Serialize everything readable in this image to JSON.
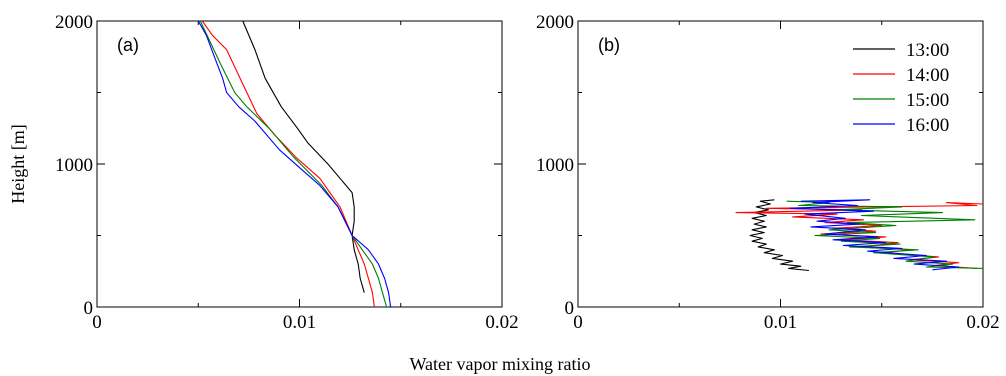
{
  "figure": {
    "ylabel": "Height [m]",
    "xlabel": "Water vapor mixing ratio"
  },
  "colors": {
    "13:00": "#000000",
    "14:00": "#ff0000",
    "15:00": "#008000",
    "16:00": "#0000ff"
  },
  "chart_data": [
    {
      "type": "line",
      "panel_label": "(a)",
      "xlim": [
        0,
        0.02
      ],
      "ylim": [
        0,
        2000
      ],
      "xticks": [
        "0",
        "0.01",
        "0.02"
      ],
      "yticks": [
        "0",
        "1000",
        "2000"
      ],
      "grid": false,
      "series": [
        {
          "color": "#000000",
          "points": [
            [
              0.0072,
              2000
            ],
            [
              0.0078,
              1800
            ],
            [
              0.0083,
              1600
            ],
            [
              0.0091,
              1400
            ],
            [
              0.0099,
              1250
            ],
            [
              0.0104,
              1150
            ],
            [
              0.0114,
              1000
            ],
            [
              0.012,
              900
            ],
            [
              0.0126,
              800
            ],
            [
              0.0127,
              700
            ],
            [
              0.0127,
              600
            ],
            [
              0.0126,
              500
            ],
            [
              0.0127,
              400
            ],
            [
              0.0129,
              300
            ],
            [
              0.013,
              200
            ],
            [
              0.0132,
              100
            ]
          ]
        },
        {
          "color": "#ff0000",
          "points": [
            [
              0.0052,
              2000
            ],
            [
              0.0057,
              1900
            ],
            [
              0.0064,
              1800
            ],
            [
              0.0069,
              1650
            ],
            [
              0.0074,
              1500
            ],
            [
              0.0079,
              1350
            ],
            [
              0.0088,
              1200
            ],
            [
              0.0098,
              1050
            ],
            [
              0.011,
              900
            ],
            [
              0.012,
              700
            ],
            [
              0.0126,
              500
            ],
            [
              0.0129,
              400
            ],
            [
              0.0132,
              300
            ],
            [
              0.0134,
              200
            ],
            [
              0.0136,
              100
            ],
            [
              0.0137,
              0
            ]
          ]
        },
        {
          "color": "#008000",
          "points": [
            [
              0.0051,
              2000
            ],
            [
              0.0056,
              1850
            ],
            [
              0.0061,
              1700
            ],
            [
              0.0068,
              1500
            ],
            [
              0.0074,
              1400
            ],
            [
              0.0085,
              1250
            ],
            [
              0.0097,
              1050
            ],
            [
              0.0111,
              850
            ],
            [
              0.0119,
              700
            ],
            [
              0.0126,
              500
            ],
            [
              0.0131,
              400
            ],
            [
              0.0136,
              300
            ],
            [
              0.0139,
              200
            ],
            [
              0.0141,
              100
            ],
            [
              0.0143,
              0
            ]
          ]
        },
        {
          "color": "#0000ff",
          "points": [
            [
              0.005,
              2000
            ],
            [
              0.0054,
              1900
            ],
            [
              0.0058,
              1750
            ],
            [
              0.0062,
              1600
            ],
            [
              0.0064,
              1500
            ],
            [
              0.007,
              1400
            ],
            [
              0.0078,
              1300
            ],
            [
              0.009,
              1100
            ],
            [
              0.0102,
              950
            ],
            [
              0.011,
              850
            ],
            [
              0.0119,
              700
            ],
            [
              0.0126,
              500
            ],
            [
              0.0134,
              400
            ],
            [
              0.0139,
              300
            ],
            [
              0.0142,
              200
            ],
            [
              0.0144,
              100
            ],
            [
              0.0145,
              0
            ]
          ]
        }
      ]
    },
    {
      "type": "line",
      "panel_label": "(b)",
      "xlim": [
        0,
        0.02
      ],
      "ylim": [
        0,
        2000
      ],
      "xticks": [
        "0",
        "0.01",
        "0.02"
      ],
      "yticks": [
        "0",
        "1000",
        "2000"
      ],
      "grid": false,
      "legend": {
        "position": "top-right"
      },
      "series": [
        {
          "name": "13:00",
          "color": "#000000",
          "points": [
            [
              0.0097,
              750
            ],
            [
              0.009,
              740
            ],
            [
              0.0095,
              720
            ],
            [
              0.0088,
              700
            ],
            [
              0.0094,
              680
            ],
            [
              0.0087,
              660
            ],
            [
              0.0093,
              640
            ],
            [
              0.0086,
              620
            ],
            [
              0.0092,
              600
            ],
            [
              0.0087,
              580
            ],
            [
              0.0093,
              560
            ],
            [
              0.0086,
              540
            ],
            [
              0.0092,
              520
            ],
            [
              0.0085,
              500
            ],
            [
              0.0091,
              480
            ],
            [
              0.0086,
              460
            ],
            [
              0.0093,
              440
            ],
            [
              0.0089,
              420
            ],
            [
              0.0097,
              400
            ],
            [
              0.0092,
              380
            ],
            [
              0.0101,
              360
            ],
            [
              0.0096,
              340
            ],
            [
              0.0106,
              320
            ],
            [
              0.01,
              300
            ],
            [
              0.011,
              285
            ],
            [
              0.0104,
              270
            ],
            [
              0.0114,
              255
            ]
          ]
        },
        {
          "name": "14:00",
          "color": "#ff0000",
          "points": [
            [
              0.02,
              720
            ],
            [
              0.0182,
              730
            ],
            [
              0.0197,
              710
            ],
            [
              0.0093,
              690
            ],
            [
              0.014,
              680
            ],
            [
              0.0078,
              660
            ],
            [
              0.0128,
              650
            ],
            [
              0.0106,
              630
            ],
            [
              0.0141,
              610
            ],
            [
              0.0122,
              590
            ],
            [
              0.015,
              570
            ],
            [
              0.0126,
              550
            ],
            [
              0.0147,
              530
            ],
            [
              0.012,
              510
            ],
            [
              0.0152,
              490
            ],
            [
              0.013,
              470
            ],
            [
              0.0158,
              450
            ],
            [
              0.014,
              420
            ],
            [
              0.0165,
              400
            ],
            [
              0.015,
              380
            ],
            [
              0.0178,
              350
            ],
            [
              0.0164,
              330
            ],
            [
              0.0188,
              310
            ],
            [
              0.0176,
              290
            ],
            [
              0.0197,
              270
            ]
          ]
        },
        {
          "name": "15:00",
          "color": "#008000",
          "points": [
            [
              0.0103,
              740
            ],
            [
              0.0124,
              730
            ],
            [
              0.0109,
              710
            ],
            [
              0.016,
              700
            ],
            [
              0.0128,
              680
            ],
            [
              0.018,
              660
            ],
            [
              0.014,
              640
            ],
            [
              0.0196,
              610
            ],
            [
              0.0133,
              590
            ],
            [
              0.0157,
              570
            ],
            [
              0.0124,
              540
            ],
            [
              0.0147,
              520
            ],
            [
              0.0117,
              500
            ],
            [
              0.0149,
              480
            ],
            [
              0.013,
              460
            ],
            [
              0.0159,
              440
            ],
            [
              0.0134,
              420
            ],
            [
              0.0168,
              400
            ],
            [
              0.0146,
              380
            ],
            [
              0.0176,
              350
            ],
            [
              0.0162,
              320
            ],
            [
              0.0185,
              300
            ],
            [
              0.0172,
              280
            ],
            [
              0.02,
              270
            ]
          ]
        },
        {
          "name": "16:00",
          "color": "#0000ff",
          "points": [
            [
              0.011,
              740
            ],
            [
              0.0144,
              750
            ],
            [
              0.0116,
              730
            ],
            [
              0.0138,
              710
            ],
            [
              0.0105,
              690
            ],
            [
              0.0146,
              670
            ],
            [
              0.0112,
              650
            ],
            [
              0.0132,
              620
            ],
            [
              0.0118,
              600
            ],
            [
              0.0139,
              580
            ],
            [
              0.0115,
              560
            ],
            [
              0.0142,
              540
            ],
            [
              0.0122,
              510
            ],
            [
              0.0148,
              490
            ],
            [
              0.0126,
              470
            ],
            [
              0.0152,
              450
            ],
            [
              0.0131,
              430
            ],
            [
              0.016,
              410
            ],
            [
              0.0143,
              390
            ],
            [
              0.0172,
              360
            ],
            [
              0.0156,
              340
            ],
            [
              0.0182,
              320
            ],
            [
              0.0166,
              300
            ],
            [
              0.0188,
              280
            ],
            [
              0.0175,
              260
            ]
          ]
        }
      ]
    }
  ]
}
